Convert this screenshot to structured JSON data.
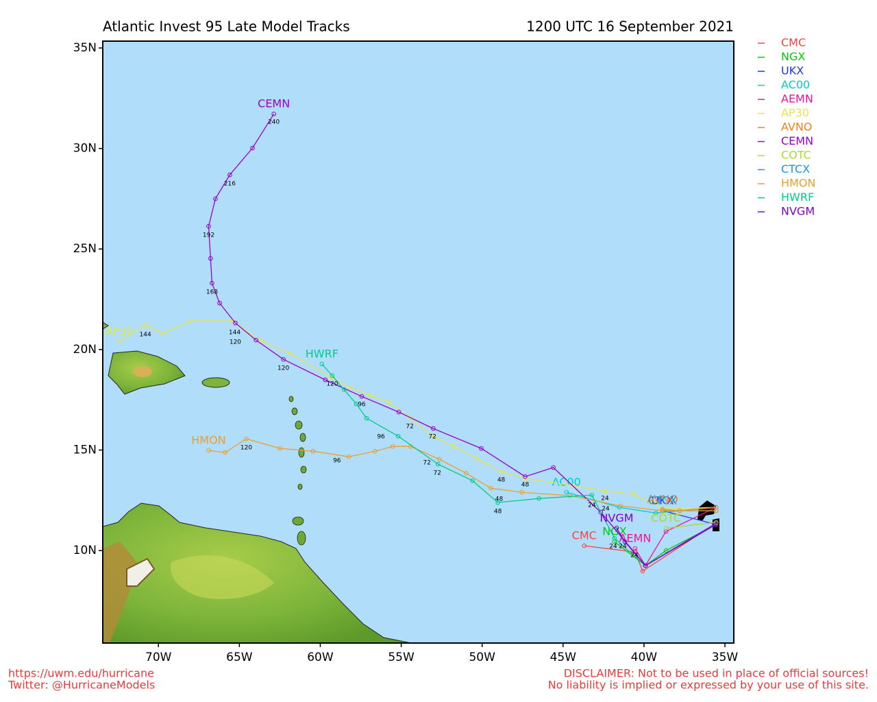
{
  "chart_data": {
    "type": "map",
    "title": "Atlantic Invest 95 Late Model Tracks",
    "subtitle": "1200 UTC 16 September 2021",
    "xlim": [
      -73.44,
      -34.45
    ],
    "ylim": [
      5.4,
      35.34
    ],
    "xticks": [
      {
        "value": -70,
        "label": "70W"
      },
      {
        "value": -65,
        "label": "65W"
      },
      {
        "value": -60,
        "label": "60W"
      },
      {
        "value": -55,
        "label": "55W"
      },
      {
        "value": -50,
        "label": "50W"
      },
      {
        "value": -45,
        "label": "45W"
      },
      {
        "value": -40,
        "label": "40W"
      },
      {
        "value": -35,
        "label": "35W"
      }
    ],
    "yticks": [
      {
        "value": 10,
        "label": "10N"
      },
      {
        "value": 15,
        "label": "15N"
      },
      {
        "value": 20,
        "label": "20N"
      },
      {
        "value": 25,
        "label": "25N"
      },
      {
        "value": 30,
        "label": "30N"
      },
      {
        "value": 35,
        "label": "35N"
      }
    ],
    "series": [
      {
        "name": "CMC",
        "color": "#ff4040",
        "x": [
          -35.54,
          -40.08,
          -40.55,
          -43.69
        ],
        "values": [
          11.36,
          8.98,
          9.93,
          10.24
        ]
      },
      {
        "name": "NGX",
        "color": "#00cc00",
        "x": [
          -35.54,
          -38.64,
          -39.91,
          -41.82
        ],
        "values": [
          11.3,
          10.0,
          9.25,
          10.44
        ]
      },
      {
        "name": "UKX",
        "color": "#2233ee",
        "x": [
          -35.54,
          -38.85
        ],
        "values": [
          11.3,
          11.98
        ]
      },
      {
        "name": "AC00",
        "color": "#00cccc",
        "x": [
          -35.54,
          -39.27,
          -41.52,
          -44.79
        ],
        "values": [
          12.15,
          11.87,
          12.15,
          12.9
        ]
      },
      {
        "name": "AEMN",
        "color": "#ee1199",
        "x": [
          -35.54,
          -38.64,
          -39.91,
          -40.55
        ],
        "values": [
          12.15,
          10.95,
          9.25,
          10.1
        ]
      },
      {
        "name": "AP30",
        "color": "#e6e64a",
        "x": [
          -35.54,
          -38.85,
          -40.63,
          -42.37,
          -44.49,
          -47.29,
          -48.82,
          -50.31,
          -51.75,
          -53.07,
          -54.47,
          -55.74,
          -56.89,
          -58.2,
          -59.39,
          -61.85,
          -63.68,
          -65.42,
          -68.01,
          -69.7,
          -70.81,
          -72.42
        ],
        "values": [
          12.15,
          12.08,
          12.8,
          12.97,
          13.24,
          13.58,
          13.92,
          14.57,
          15.18,
          15.69,
          16.62,
          17.37,
          17.71,
          18.12,
          18.63,
          19.79,
          20.44,
          21.42,
          21.42,
          20.81,
          21.22,
          20.4
        ]
      },
      {
        "name": "AVNO",
        "color": "#f07f20",
        "x": [
          -35.54,
          -37.79,
          -38.85
        ],
        "values": [
          12.15,
          11.98,
          12.05
        ]
      },
      {
        "name": "CEMN",
        "color": "#9900cc",
        "x": [
          -35.66,
          -39.91,
          -42.67,
          -45.6,
          -47.34,
          -50.05,
          -53.02,
          -55.15,
          -57.44,
          -59.69,
          -62.28,
          -63.97,
          -65.25,
          -66.22,
          -66.69,
          -66.78,
          -66.9,
          -66.48,
          -65.59,
          -64.19,
          -62.87
        ],
        "values": [
          11.3,
          9.25,
          11.91,
          14.13,
          13.68,
          15.08,
          16.07,
          16.89,
          17.67,
          18.49,
          19.51,
          20.47,
          21.32,
          22.31,
          23.3,
          24.53,
          26.13,
          27.5,
          28.69,
          30.02,
          31.72
        ]
      },
      {
        "name": "COTC",
        "color": "#aadd22",
        "x": [
          -35.54,
          -38.64
        ],
        "values": [
          11.4,
          11.12
        ]
      },
      {
        "name": "CTCX",
        "color": "#1199dd",
        "x": [
          -35.54,
          -38.85
        ],
        "values": [
          11.98,
          11.98
        ]
      },
      {
        "name": "HMON",
        "color": "#e8a030",
        "x": [
          -35.54,
          -38.85,
          -41.44,
          -44.58,
          -47.55,
          -49.46,
          -50.99,
          -52.64,
          -54.42,
          -55.53,
          -56.63,
          -58.24,
          -60.45,
          -62.49,
          -64.57,
          -65.88,
          -66.9
        ],
        "values": [
          11.98,
          11.98,
          12.22,
          12.73,
          12.9,
          13.1,
          13.85,
          14.54,
          15.18,
          15.18,
          14.94,
          14.67,
          14.94,
          15.08,
          15.56,
          14.88,
          14.98
        ]
      },
      {
        "name": "HWRF",
        "color": "#00cc88",
        "x": [
          -35.54,
          -39.91,
          -41.82,
          -43.22,
          -46.49,
          -49.03,
          -50.6,
          -52.73,
          -55.19,
          -57.14,
          -57.78,
          -58.54,
          -59.26,
          -59.9
        ],
        "values": [
          11.3,
          9.25,
          10.61,
          12.76,
          12.59,
          12.39,
          13.48,
          14.3,
          15.69,
          16.58,
          17.3,
          18.01,
          18.7,
          19.28
        ]
      },
      {
        "name": "NVGM",
        "color": "#7a00d6",
        "x": [
          -35.54,
          -39.91,
          -41.18,
          -41.69
        ],
        "values": [
          11.3,
          9.25,
          10.44,
          11.12
        ]
      }
    ],
    "annotations": [
      {
        "x": -62.87,
        "y": 31.32,
        "text": 240
      },
      {
        "x": -65.59,
        "y": 28.25,
        "text": 216
      },
      {
        "x": -66.9,
        "y": 25.69,
        "text": 192
      },
      {
        "x": -66.69,
        "y": 22.86,
        "text": 168
      },
      {
        "x": -65.29,
        "y": 20.84,
        "text": 144
      },
      {
        "x": -65.25,
        "y": 20.37,
        "text": 120
      },
      {
        "x": -70.81,
        "y": 20.74,
        "text": 144
      },
      {
        "x": -62.28,
        "y": 19.07,
        "text": 120
      },
      {
        "x": -59.26,
        "y": 18.29,
        "text": 120
      },
      {
        "x": -57.44,
        "y": 17.26,
        "text": 96
      },
      {
        "x": -56.25,
        "y": 15.66,
        "text": 96
      },
      {
        "x": -54.47,
        "y": 16.17,
        "text": 72
      },
      {
        "x": -53.07,
        "y": 15.66,
        "text": 72
      },
      {
        "x": -53.41,
        "y": 14.36,
        "text": 72
      },
      {
        "x": -52.77,
        "y": 13.85,
        "text": 72
      },
      {
        "x": -48.82,
        "y": 13.51,
        "text": 48
      },
      {
        "x": -47.34,
        "y": 13.27,
        "text": 48
      },
      {
        "x": -48.95,
        "y": 12.56,
        "text": 48
      },
      {
        "x": -49.03,
        "y": 11.94,
        "text": 48
      },
      {
        "x": -42.41,
        "y": 12.59,
        "text": 24
      },
      {
        "x": -43.22,
        "y": 12.25,
        "text": 24
      },
      {
        "x": -42.37,
        "y": 12.08,
        "text": 24
      },
      {
        "x": -41.9,
        "y": 10.2,
        "text": 24
      },
      {
        "x": -41.31,
        "y": 10.2,
        "text": 24
      },
      {
        "x": -40.59,
        "y": 9.76,
        "text": 24
      },
      {
        "x": -64.57,
        "y": 15.12,
        "text": 120
      },
      {
        "x": -58.97,
        "y": 14.47,
        "text": 96
      }
    ]
  },
  "footer": {
    "url": "https://uwm.edu/hurricane",
    "twitter": "Twitter: @HurricaneModels",
    "disclaimer": "DISCLAIMER: Not to be used in place of official sources!",
    "liability": "No liability is implied or expressed by your use of this site."
  }
}
